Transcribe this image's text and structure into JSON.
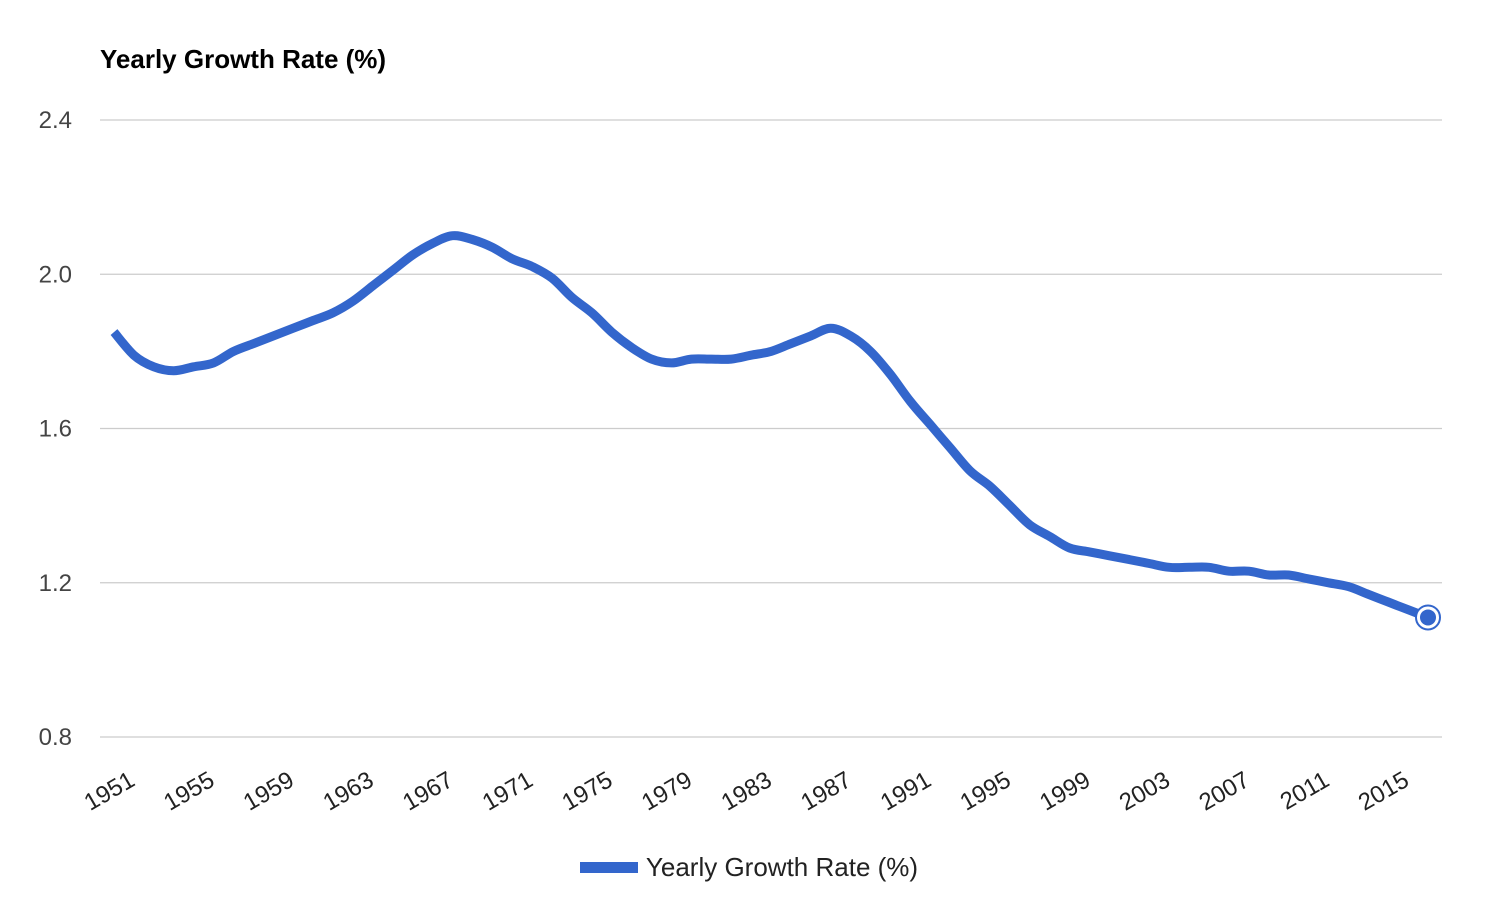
{
  "chart_data": {
    "type": "line",
    "title": "Yearly Growth Rate (%)",
    "xlabel": "",
    "ylabel": "",
    "ylim": [
      0.8,
      2.4
    ],
    "xlim": [
      1951,
      2017
    ],
    "yticks": [
      "0.8",
      "1.2",
      "1.6",
      "2.0",
      "2.4"
    ],
    "xticks": [
      "1951",
      "1955",
      "1959",
      "1963",
      "1967",
      "1971",
      "1975",
      "1979",
      "1983",
      "1987",
      "1991",
      "1995",
      "1999",
      "2003",
      "2007",
      "2011",
      "2015"
    ],
    "grid": true,
    "legend_position": "bottom",
    "series": [
      {
        "name": "Yearly Growth Rate (%)",
        "color": "#3366cc",
        "x": [
          1951,
          1952,
          1953,
          1954,
          1955,
          1956,
          1957,
          1958,
          1959,
          1960,
          1961,
          1962,
          1963,
          1964,
          1965,
          1966,
          1967,
          1968,
          1969,
          1970,
          1971,
          1972,
          1973,
          1974,
          1975,
          1976,
          1977,
          1978,
          1979,
          1980,
          1981,
          1982,
          1983,
          1984,
          1985,
          1986,
          1987,
          1988,
          1989,
          1990,
          1991,
          1992,
          1993,
          1994,
          1995,
          1996,
          1997,
          1998,
          1999,
          2000,
          2001,
          2002,
          2003,
          2004,
          2005,
          2006,
          2007,
          2008,
          2009,
          2010,
          2011,
          2012,
          2013,
          2014,
          2015,
          2016,
          2017
        ],
        "values": [
          1.85,
          1.79,
          1.76,
          1.75,
          1.76,
          1.77,
          1.8,
          1.82,
          1.84,
          1.86,
          1.88,
          1.9,
          1.93,
          1.97,
          2.01,
          2.05,
          2.08,
          2.1,
          2.09,
          2.07,
          2.04,
          2.02,
          1.99,
          1.94,
          1.9,
          1.85,
          1.81,
          1.78,
          1.77,
          1.78,
          1.78,
          1.78,
          1.79,
          1.8,
          1.82,
          1.84,
          1.86,
          1.84,
          1.8,
          1.74,
          1.67,
          1.61,
          1.55,
          1.49,
          1.45,
          1.4,
          1.35,
          1.32,
          1.29,
          1.28,
          1.27,
          1.26,
          1.25,
          1.24,
          1.24,
          1.24,
          1.23,
          1.23,
          1.22,
          1.22,
          1.21,
          1.2,
          1.19,
          1.17,
          1.15,
          1.13,
          1.11
        ]
      }
    ],
    "end_marker": true
  }
}
